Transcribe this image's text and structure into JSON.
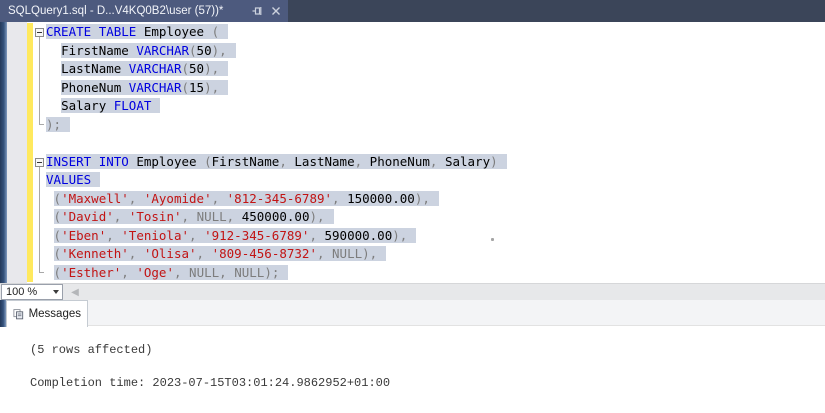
{
  "tab": {
    "title": "SQLQuery1.sql - D...V4KQ0B2\\user (57))*"
  },
  "editor": {
    "lines": [
      {
        "indent": 0,
        "selected": true,
        "tokens": [
          [
            "kw",
            "CREATE"
          ],
          [
            "id",
            " "
          ],
          [
            "kw",
            "TABLE"
          ],
          [
            "id",
            " Employee "
          ],
          [
            "op",
            "("
          ]
        ]
      },
      {
        "indent": 2,
        "selected": true,
        "tokens": [
          [
            "id",
            "FirstName "
          ],
          [
            "kw",
            "VARCHAR"
          ],
          [
            "op",
            "("
          ],
          [
            "num",
            "50"
          ],
          [
            "op",
            "),"
          ]
        ]
      },
      {
        "indent": 2,
        "selected": true,
        "tokens": [
          [
            "id",
            "LastName "
          ],
          [
            "kw",
            "VARCHAR"
          ],
          [
            "op",
            "("
          ],
          [
            "num",
            "50"
          ],
          [
            "op",
            "),"
          ]
        ]
      },
      {
        "indent": 2,
        "selected": true,
        "tokens": [
          [
            "id",
            "PhoneNum "
          ],
          [
            "kw",
            "VARCHAR"
          ],
          [
            "op",
            "("
          ],
          [
            "num",
            "15"
          ],
          [
            "op",
            "),"
          ]
        ]
      },
      {
        "indent": 2,
        "selected": true,
        "tokens": [
          [
            "id",
            "Salary "
          ],
          [
            "kw",
            "FLOAT"
          ]
        ]
      },
      {
        "indent": 0,
        "selected": true,
        "tokens": [
          [
            "op",
            ");"
          ]
        ]
      },
      {
        "indent": 0,
        "selected": false,
        "tokens": []
      },
      {
        "indent": 0,
        "selected": true,
        "tokens": [
          [
            "kw",
            "INSERT"
          ],
          [
            "id",
            " "
          ],
          [
            "kw",
            "INTO"
          ],
          [
            "id",
            " Employee "
          ],
          [
            "op",
            "("
          ],
          [
            "id",
            "FirstName"
          ],
          [
            "op",
            ", "
          ],
          [
            "id",
            "LastName"
          ],
          [
            "op",
            ", "
          ],
          [
            "id",
            "PhoneNum"
          ],
          [
            "op",
            ", "
          ],
          [
            "id",
            "Salary"
          ],
          [
            "op",
            ")"
          ]
        ]
      },
      {
        "indent": 0,
        "selected": true,
        "tokens": [
          [
            "kw",
            "VALUES"
          ]
        ]
      },
      {
        "indent": 1,
        "selected": true,
        "tokens": [
          [
            "op",
            "("
          ],
          [
            "str",
            "'Maxwell'"
          ],
          [
            "op",
            ", "
          ],
          [
            "str",
            "'Ayomide'"
          ],
          [
            "op",
            ", "
          ],
          [
            "str",
            "'812-345-6789'"
          ],
          [
            "op",
            ", "
          ],
          [
            "num",
            "150000.00"
          ],
          [
            "op",
            "),"
          ]
        ]
      },
      {
        "indent": 1,
        "selected": true,
        "tokens": [
          [
            "op",
            "("
          ],
          [
            "str",
            "'David'"
          ],
          [
            "op",
            ", "
          ],
          [
            "str",
            "'Tosin'"
          ],
          [
            "op",
            ", "
          ],
          [
            "op",
            "NULL"
          ],
          [
            "op",
            ", "
          ],
          [
            "num",
            "450000.00"
          ],
          [
            "op",
            "),"
          ]
        ]
      },
      {
        "indent": 1,
        "selected": true,
        "tokens": [
          [
            "op",
            "("
          ],
          [
            "str",
            "'Eben'"
          ],
          [
            "op",
            ", "
          ],
          [
            "str",
            "'Teniola'"
          ],
          [
            "op",
            ", "
          ],
          [
            "str",
            "'912-345-6789'"
          ],
          [
            "op",
            ", "
          ],
          [
            "num",
            "590000.00"
          ],
          [
            "op",
            "),"
          ]
        ]
      },
      {
        "indent": 1,
        "selected": true,
        "tokens": [
          [
            "op",
            "("
          ],
          [
            "str",
            "'Kenneth'"
          ],
          [
            "op",
            ", "
          ],
          [
            "str",
            "'Olisa'"
          ],
          [
            "op",
            ", "
          ],
          [
            "str",
            "'809-456-8732'"
          ],
          [
            "op",
            ", "
          ],
          [
            "op",
            "NULL"
          ],
          [
            "op",
            "),"
          ]
        ]
      },
      {
        "indent": 1,
        "selected": true,
        "tokens": [
          [
            "op",
            "("
          ],
          [
            "str",
            "'Esther'"
          ],
          [
            "op",
            ", "
          ],
          [
            "str",
            "'Oge'"
          ],
          [
            "op",
            ", "
          ],
          [
            "op",
            "NULL"
          ],
          [
            "op",
            ", "
          ],
          [
            "op",
            "NULL"
          ],
          [
            "op",
            ");"
          ]
        ]
      }
    ]
  },
  "zoom_control": {
    "value": "100 %"
  },
  "results": {
    "tab_label": "Messages",
    "rows_affected": "(5 rows affected)",
    "completion_time": "Completion time: 2023-07-15T03:01:24.9862952+01:00"
  },
  "colors": {
    "keyword": "#0000e0",
    "string": "#c21414",
    "operator": "#7d7d7d",
    "identifier": "#000000",
    "selection": "#ccd3e0",
    "change-bar": "#ffe95e",
    "tab-active-bg": "#4d5a7e",
    "tab-bar-bg": "#3b4559"
  }
}
